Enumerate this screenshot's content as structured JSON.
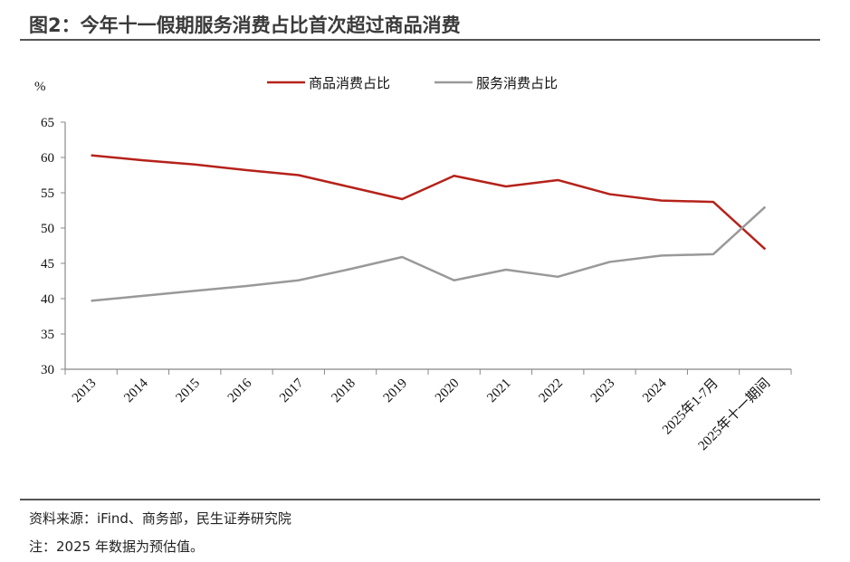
{
  "title": "图2：今年十一假期服务消费占比首次超过商品消费",
  "source": "资料来源：iFind、商务部，民生证券研究院",
  "note": "注：2025 年数据为预估值。",
  "chart_data": {
    "type": "line",
    "ylabel": "%",
    "ylim": [
      30,
      65
    ],
    "yticks": [
      30,
      35,
      40,
      45,
      50,
      55,
      60,
      65
    ],
    "grid": false,
    "legend_position": "top",
    "categories": [
      "2013",
      "2014",
      "2015",
      "2016",
      "2017",
      "2018",
      "2019",
      "2020",
      "2021",
      "2022",
      "2023",
      "2024",
      "2025年1-7月",
      "2025年十一期间"
    ],
    "series": [
      {
        "name": "商品消费占比",
        "color": "#b5221a",
        "values": [
          60.3,
          59.6,
          59.0,
          58.2,
          57.5,
          55.8,
          54.1,
          57.4,
          55.9,
          56.8,
          54.8,
          53.9,
          53.7,
          47.0
        ]
      },
      {
        "name": "服务消费占比",
        "color": "#999999",
        "values": [
          39.7,
          40.4,
          41.1,
          41.8,
          42.6,
          44.2,
          45.9,
          42.6,
          44.1,
          43.1,
          45.2,
          46.1,
          46.3,
          53.0
        ]
      }
    ]
  }
}
